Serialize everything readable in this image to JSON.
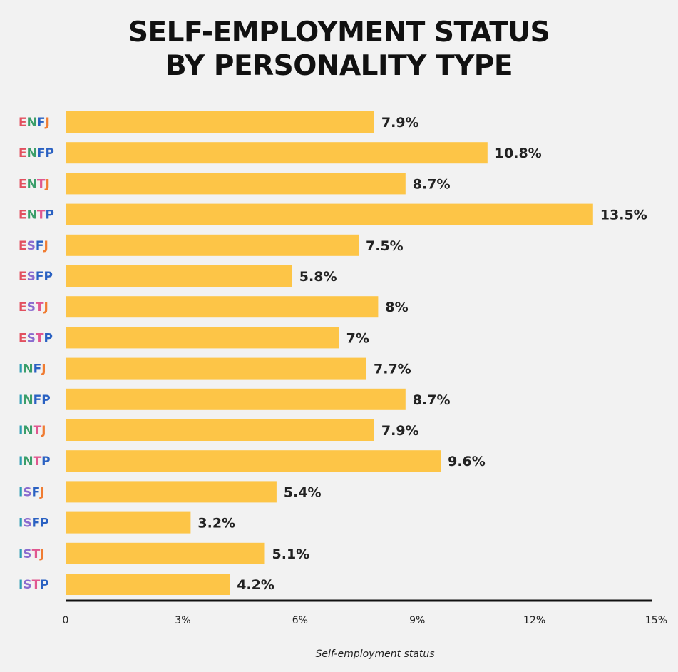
{
  "chart_data": {
    "type": "bar",
    "orientation": "horizontal",
    "title_lines": [
      "SELF-EMPLOYMENT STATUS",
      "BY PERSONALITY TYPE"
    ],
    "categories": [
      "ENFJ",
      "ENFP",
      "ENTJ",
      "ENTP",
      "ESFJ",
      "ESFP",
      "ESTJ",
      "ESTP",
      "INFJ",
      "INFP",
      "INTJ",
      "INTP",
      "ISFJ",
      "ISFP",
      "ISTJ",
      "ISTP"
    ],
    "values": [
      7.9,
      10.8,
      8.7,
      13.5,
      7.5,
      5.8,
      8.0,
      7.0,
      7.7,
      8.7,
      7.9,
      9.6,
      5.4,
      3.2,
      5.1,
      4.2
    ],
    "value_labels": [
      "7.9%",
      "10.8%",
      "8.7%",
      "13.5%",
      "7.5%",
      "5.8%",
      "8%",
      "7%",
      "7.7%",
      "8.7%",
      "7.9%",
      "9.6%",
      "5.4%",
      "3.2%",
      "5.1%",
      "4.2%"
    ],
    "xlabel": "Self-employment status",
    "xlim": [
      0,
      15
    ],
    "x_ticks": [
      0,
      3,
      6,
      9,
      12,
      15
    ],
    "x_tick_labels": [
      "0",
      "3%",
      "6%",
      "9%",
      "12%",
      "15%"
    ],
    "grid": false,
    "legend": "none",
    "bar_color": "#fdc547",
    "axis_color": "#111111",
    "letter_colors": {
      "E": "#e2505f",
      "I": "#2e9db3",
      "N": "#3a9e6a",
      "S": "#8a6ccf",
      "T": "#e0578f",
      "F": "#2a61c2",
      "J": "#f07c32",
      "P": "#2a61c2"
    }
  }
}
